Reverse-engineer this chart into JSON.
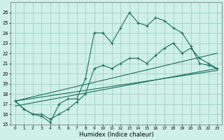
{
  "xlabel": "Humidex (Indice chaleur)",
  "xlim": [
    -0.5,
    23.5
  ],
  "ylim": [
    15,
    27
  ],
  "yticks": [
    15,
    16,
    17,
    18,
    19,
    20,
    21,
    22,
    23,
    24,
    25,
    26
  ],
  "xticks": [
    0,
    1,
    2,
    3,
    4,
    5,
    6,
    7,
    8,
    9,
    10,
    11,
    12,
    13,
    14,
    15,
    16,
    17,
    18,
    19,
    20,
    21,
    22,
    23
  ],
  "bg_color": "#cff0e8",
  "grid_color": "#a0cfc4",
  "line_color": "#1a6e5e",
  "series1_x": [
    0,
    1,
    2,
    3,
    4,
    5,
    6,
    7,
    8,
    9,
    10,
    11,
    12,
    13,
    14,
    15,
    16,
    17,
    18,
    19,
    20,
    21,
    22,
    23
  ],
  "series1_y": [
    17.3,
    16.5,
    16.0,
    15.8,
    15.2,
    17.0,
    17.5,
    17.5,
    19.5,
    24.0,
    24.0,
    23.0,
    24.5,
    26.0,
    25.0,
    24.7,
    25.5,
    25.2,
    24.5,
    24.0,
    22.7,
    21.0,
    20.8,
    20.5
  ],
  "series2_x": [
    0,
    1,
    2,
    3,
    4,
    5,
    6,
    7,
    8,
    9,
    10,
    11,
    12,
    13,
    14,
    15,
    16,
    17,
    18,
    19,
    20,
    21,
    22,
    23
  ],
  "series2_y": [
    17.3,
    16.5,
    16.0,
    16.0,
    15.5,
    16.0,
    16.5,
    17.2,
    18.0,
    20.5,
    20.8,
    20.5,
    21.0,
    21.5,
    21.5,
    21.0,
    21.8,
    22.5,
    23.0,
    22.0,
    22.5,
    21.5,
    21.0,
    20.5
  ],
  "series3_x": [
    0,
    23
  ],
  "series3_y": [
    17.3,
    22.0
  ],
  "series4_x": [
    0,
    23
  ],
  "series4_y": [
    16.8,
    20.5
  ],
  "series5_x": [
    0,
    23
  ],
  "series5_y": [
    17.3,
    20.3
  ]
}
